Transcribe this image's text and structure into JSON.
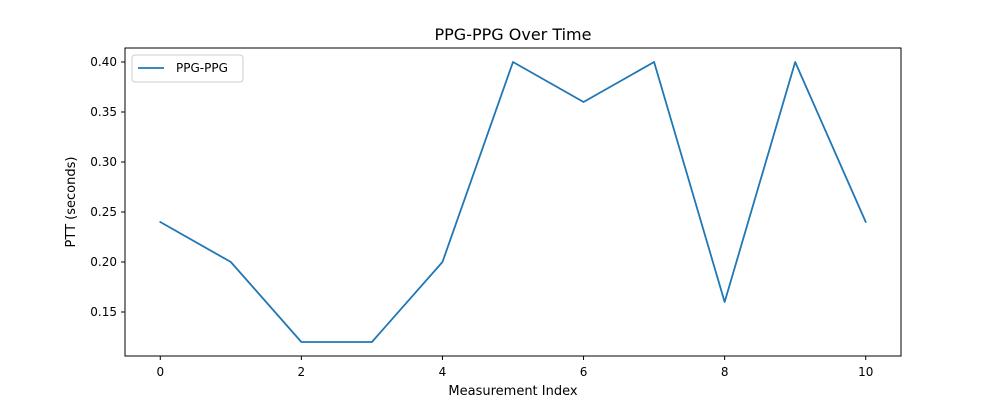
{
  "chart_data": {
    "type": "line",
    "title": "PPG-PPG Over Time",
    "xlabel": "Measurement Index",
    "ylabel": "PTT (seconds)",
    "x": [
      0,
      1,
      2,
      3,
      4,
      5,
      6,
      7,
      8,
      9,
      10
    ],
    "series": [
      {
        "name": "PPG-PPG",
        "color": "#1f77b4",
        "values": [
          0.24,
          0.2,
          0.12,
          0.12,
          0.2,
          0.4,
          0.36,
          0.4,
          0.16,
          0.4,
          0.24
        ]
      }
    ],
    "xlim": [
      -0.5,
      10.5
    ],
    "ylim": [
      0.106,
      0.414
    ],
    "x_ticks": [
      0,
      2,
      4,
      6,
      8,
      10
    ],
    "x_tick_labels": [
      "0",
      "2",
      "4",
      "6",
      "8",
      "10"
    ],
    "y_ticks": [
      0.15,
      0.2,
      0.25,
      0.3,
      0.35,
      0.4
    ],
    "y_tick_labels": [
      "0.15",
      "0.20",
      "0.25",
      "0.30",
      "0.35",
      "0.40"
    ],
    "grid": false,
    "legend": "upper-left"
  }
}
